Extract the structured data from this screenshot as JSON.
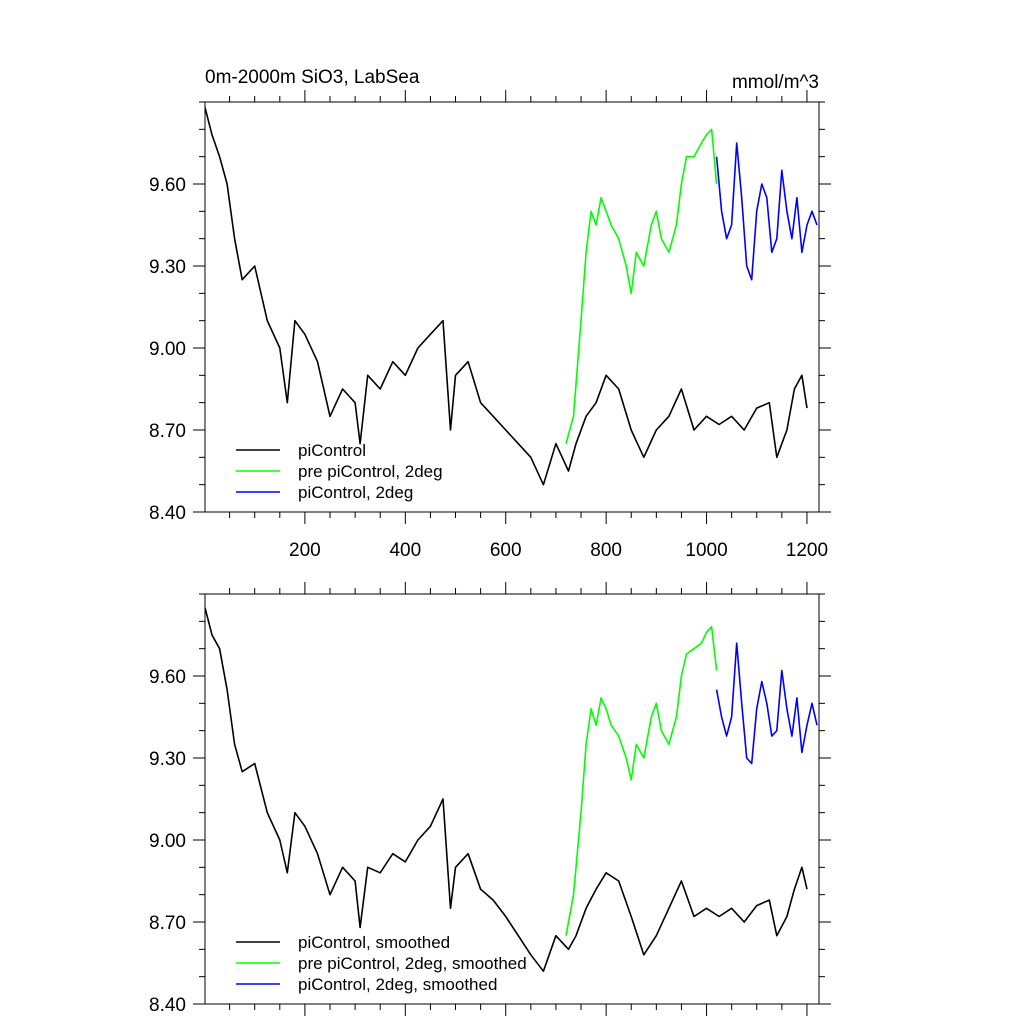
{
  "chart_data": [
    {
      "type": "line",
      "title": "0m-2000m SiO3, LabSea",
      "units": "mmol/m^3",
      "xlim": [
        1,
        1224
      ],
      "ylim": [
        8.4,
        9.9
      ],
      "x_ticks": [
        200,
        400,
        600,
        800,
        1000,
        1200
      ],
      "x_tick_labels": [
        "200",
        "400",
        "600",
        "800",
        "1000",
        "1200"
      ],
      "y_ticks": [
        8.4,
        8.7,
        9.0,
        9.3,
        9.6
      ],
      "y_tick_labels": [
        "8.40",
        "8.70",
        "9.00",
        "9.30",
        "9.60"
      ],
      "grid": false,
      "legend_position": "bottom-left",
      "series": [
        {
          "name": "piControl",
          "color": "#000000",
          "x": [
            1,
            15,
            30,
            45,
            60,
            75,
            100,
            125,
            150,
            165,
            180,
            200,
            225,
            250,
            275,
            300,
            310,
            325,
            350,
            375,
            400,
            425,
            450,
            475,
            490,
            500,
            525,
            550,
            575,
            600,
            625,
            650,
            675,
            700,
            725,
            740,
            760,
            780,
            800,
            825,
            850,
            875,
            900,
            925,
            950,
            975,
            1000,
            1025,
            1050,
            1075,
            1100,
            1125,
            1140,
            1160,
            1175,
            1190,
            1200
          ],
          "values": [
            9.88,
            9.78,
            9.7,
            9.6,
            9.4,
            9.25,
            9.3,
            9.1,
            9.0,
            8.8,
            9.1,
            9.05,
            8.95,
            8.75,
            8.85,
            8.8,
            8.65,
            8.9,
            8.85,
            8.95,
            8.9,
            9.0,
            9.05,
            9.1,
            8.7,
            8.9,
            8.95,
            8.8,
            8.75,
            8.7,
            8.65,
            8.6,
            8.5,
            8.65,
            8.55,
            8.65,
            8.75,
            8.8,
            8.9,
            8.85,
            8.7,
            8.6,
            8.7,
            8.75,
            8.85,
            8.7,
            8.75,
            8.72,
            8.75,
            8.7,
            8.78,
            8.8,
            8.6,
            8.7,
            8.85,
            8.9,
            8.78
          ]
        },
        {
          "name": "pre piControl, 2deg",
          "color": "#00ff00",
          "x": [
            720,
            735,
            750,
            760,
            770,
            780,
            790,
            800,
            810,
            825,
            840,
            850,
            860,
            875,
            890,
            900,
            910,
            925,
            940,
            950,
            960,
            975,
            990,
            1000,
            1010,
            1020
          ],
          "values": [
            8.65,
            8.75,
            9.1,
            9.35,
            9.5,
            9.45,
            9.55,
            9.5,
            9.45,
            9.4,
            9.3,
            9.2,
            9.35,
            9.3,
            9.45,
            9.5,
            9.4,
            9.35,
            9.45,
            9.6,
            9.7,
            9.7,
            9.75,
            9.78,
            9.8,
            9.6
          ]
        },
        {
          "name": "piControl, 2deg",
          "color": "#0000ff",
          "x": [
            1020,
            1030,
            1040,
            1050,
            1060,
            1070,
            1080,
            1090,
            1100,
            1110,
            1120,
            1130,
            1140,
            1150,
            1160,
            1170,
            1180,
            1190,
            1200,
            1210,
            1220
          ],
          "values": [
            9.7,
            9.5,
            9.4,
            9.45,
            9.75,
            9.55,
            9.3,
            9.25,
            9.5,
            9.6,
            9.55,
            9.35,
            9.4,
            9.65,
            9.5,
            9.4,
            9.55,
            9.35,
            9.45,
            9.5,
            9.45
          ]
        }
      ]
    },
    {
      "type": "line",
      "xlim": [
        1,
        1224
      ],
      "ylim": [
        8.4,
        9.9
      ],
      "x_ticks": [
        200,
        400,
        600,
        800,
        1000,
        1200
      ],
      "y_ticks": [
        8.4,
        8.7,
        9.0,
        9.3,
        9.6
      ],
      "y_tick_labels": [
        "8.40",
        "8.70",
        "9.00",
        "9.30",
        "9.60"
      ],
      "grid": false,
      "legend_position": "bottom-left",
      "series": [
        {
          "name": "piControl, smoothed",
          "color": "#000000",
          "x": [
            1,
            15,
            30,
            45,
            60,
            75,
            100,
            125,
            150,
            165,
            180,
            200,
            225,
            250,
            275,
            300,
            310,
            325,
            350,
            375,
            400,
            425,
            450,
            475,
            490,
            500,
            525,
            550,
            575,
            600,
            625,
            650,
            675,
            700,
            725,
            740,
            760,
            780,
            800,
            825,
            850,
            875,
            900,
            925,
            950,
            975,
            1000,
            1025,
            1050,
            1075,
            1100,
            1125,
            1140,
            1160,
            1175,
            1190,
            1200
          ],
          "values": [
            9.85,
            9.75,
            9.7,
            9.55,
            9.35,
            9.25,
            9.28,
            9.1,
            9.0,
            8.88,
            9.1,
            9.05,
            8.95,
            8.8,
            8.9,
            8.85,
            8.68,
            8.9,
            8.88,
            8.95,
            8.92,
            9.0,
            9.05,
            9.15,
            8.75,
            8.9,
            8.95,
            8.82,
            8.78,
            8.72,
            8.65,
            8.58,
            8.52,
            8.65,
            8.6,
            8.65,
            8.75,
            8.82,
            8.88,
            8.85,
            8.72,
            8.58,
            8.65,
            8.75,
            8.85,
            8.72,
            8.75,
            8.72,
            8.75,
            8.7,
            8.76,
            8.78,
            8.65,
            8.72,
            8.82,
            8.9,
            8.82
          ]
        },
        {
          "name": "pre piControl, 2deg, smoothed",
          "color": "#00ff00",
          "x": [
            720,
            735,
            750,
            760,
            770,
            780,
            790,
            800,
            810,
            825,
            840,
            850,
            860,
            875,
            890,
            900,
            910,
            925,
            940,
            950,
            960,
            975,
            990,
            1000,
            1010,
            1020
          ],
          "values": [
            8.65,
            8.8,
            9.1,
            9.35,
            9.48,
            9.42,
            9.52,
            9.48,
            9.42,
            9.38,
            9.3,
            9.22,
            9.35,
            9.3,
            9.45,
            9.5,
            9.4,
            9.35,
            9.45,
            9.6,
            9.68,
            9.7,
            9.72,
            9.76,
            9.78,
            9.62
          ]
        },
        {
          "name": "piControl, 2deg, smoothed",
          "color": "#0000ff",
          "x": [
            1020,
            1030,
            1040,
            1050,
            1060,
            1070,
            1080,
            1090,
            1100,
            1110,
            1120,
            1130,
            1140,
            1150,
            1160,
            1170,
            1180,
            1190,
            1200,
            1210,
            1220
          ],
          "values": [
            9.55,
            9.45,
            9.38,
            9.45,
            9.72,
            9.5,
            9.3,
            9.28,
            9.48,
            9.58,
            9.5,
            9.38,
            9.4,
            9.62,
            9.48,
            9.38,
            9.52,
            9.32,
            9.42,
            9.5,
            9.42
          ]
        }
      ]
    }
  ]
}
